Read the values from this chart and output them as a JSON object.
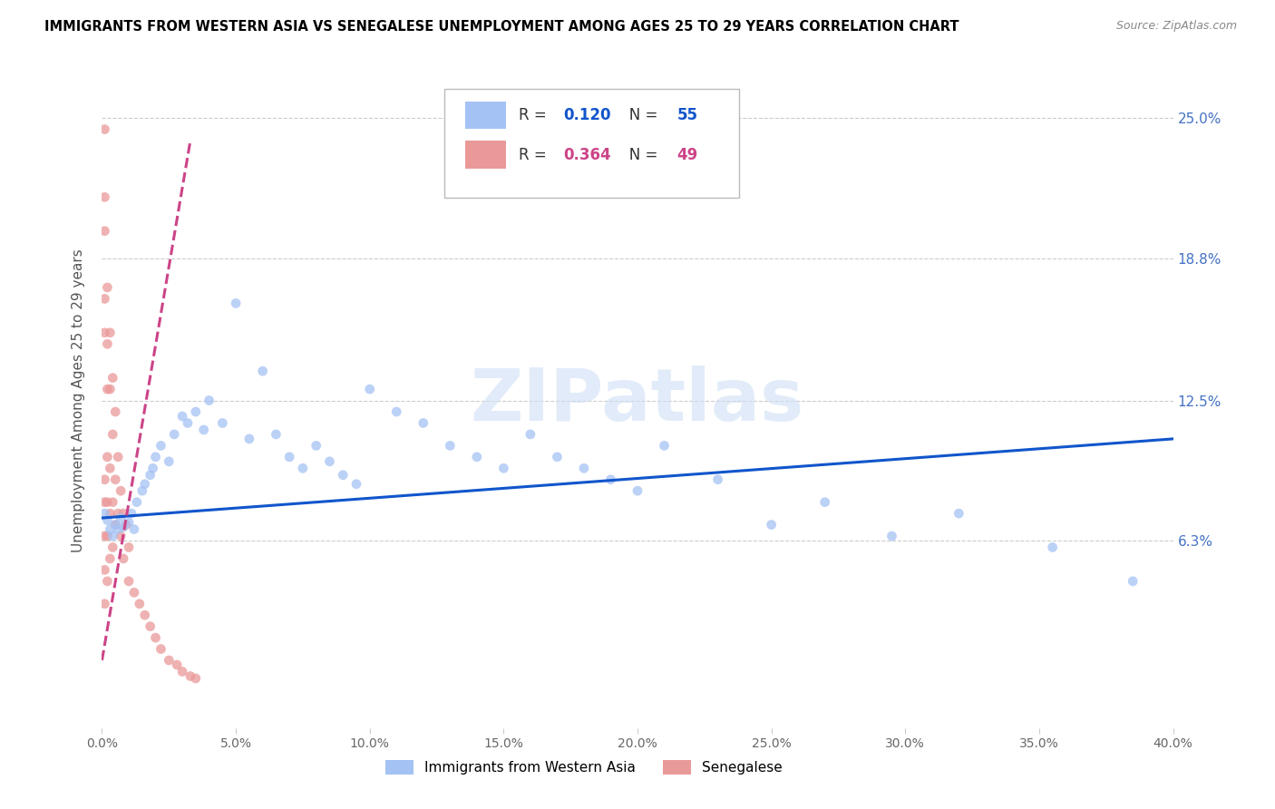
{
  "title": "IMMIGRANTS FROM WESTERN ASIA VS SENEGALESE UNEMPLOYMENT AMONG AGES 25 TO 29 YEARS CORRELATION CHART",
  "source": "Source: ZipAtlas.com",
  "ylabel": "Unemployment Among Ages 25 to 29 years",
  "ytick_labels": [
    "6.3%",
    "12.5%",
    "18.8%",
    "25.0%"
  ],
  "ytick_values": [
    0.063,
    0.125,
    0.188,
    0.25
  ],
  "xlim": [
    0.0,
    0.4
  ],
  "ylim": [
    -0.02,
    0.27
  ],
  "blue_R": "0.120",
  "blue_N": "55",
  "pink_R": "0.364",
  "pink_N": "49",
  "blue_color": "#a4c2f4",
  "pink_color": "#ea9999",
  "blue_line_color": "#1155cc",
  "pink_line_color": "#cc4488",
  "legend_label_blue": "Immigrants from Western Asia",
  "legend_label_pink": "Senegalese",
  "watermark": "ZIPatlas",
  "blue_scatter_x": [
    0.001,
    0.002,
    0.003,
    0.004,
    0.005,
    0.006,
    0.007,
    0.008,
    0.01,
    0.011,
    0.012,
    0.013,
    0.015,
    0.016,
    0.018,
    0.019,
    0.02,
    0.022,
    0.025,
    0.027,
    0.03,
    0.032,
    0.035,
    0.038,
    0.04,
    0.045,
    0.05,
    0.055,
    0.06,
    0.065,
    0.07,
    0.075,
    0.08,
    0.085,
    0.09,
    0.095,
    0.1,
    0.11,
    0.12,
    0.13,
    0.14,
    0.15,
    0.16,
    0.17,
    0.18,
    0.19,
    0.2,
    0.21,
    0.23,
    0.25,
    0.27,
    0.295,
    0.32,
    0.355,
    0.385
  ],
  "blue_scatter_y": [
    0.075,
    0.072,
    0.068,
    0.065,
    0.07,
    0.068,
    0.073,
    0.069,
    0.071,
    0.075,
    0.068,
    0.08,
    0.085,
    0.088,
    0.092,
    0.095,
    0.1,
    0.105,
    0.098,
    0.11,
    0.118,
    0.115,
    0.12,
    0.112,
    0.125,
    0.115,
    0.168,
    0.108,
    0.138,
    0.11,
    0.1,
    0.095,
    0.105,
    0.098,
    0.092,
    0.088,
    0.13,
    0.12,
    0.115,
    0.105,
    0.1,
    0.095,
    0.11,
    0.1,
    0.095,
    0.09,
    0.085,
    0.105,
    0.09,
    0.07,
    0.08,
    0.065,
    0.075,
    0.06,
    0.045
  ],
  "pink_scatter_x": [
    0.001,
    0.001,
    0.001,
    0.001,
    0.001,
    0.001,
    0.001,
    0.001,
    0.001,
    0.001,
    0.002,
    0.002,
    0.002,
    0.002,
    0.002,
    0.002,
    0.002,
    0.003,
    0.003,
    0.003,
    0.003,
    0.003,
    0.004,
    0.004,
    0.004,
    0.004,
    0.005,
    0.005,
    0.005,
    0.006,
    0.006,
    0.007,
    0.007,
    0.008,
    0.008,
    0.009,
    0.01,
    0.01,
    0.012,
    0.014,
    0.016,
    0.018,
    0.02,
    0.022,
    0.025,
    0.028,
    0.03,
    0.033,
    0.035
  ],
  "pink_scatter_y": [
    0.245,
    0.215,
    0.2,
    0.17,
    0.155,
    0.09,
    0.08,
    0.065,
    0.05,
    0.035,
    0.175,
    0.15,
    0.13,
    0.1,
    0.08,
    0.065,
    0.045,
    0.155,
    0.13,
    0.095,
    0.075,
    0.055,
    0.135,
    0.11,
    0.08,
    0.06,
    0.12,
    0.09,
    0.07,
    0.1,
    0.075,
    0.085,
    0.065,
    0.075,
    0.055,
    0.07,
    0.06,
    0.045,
    0.04,
    0.035,
    0.03,
    0.025,
    0.02,
    0.015,
    0.01,
    0.008,
    0.005,
    0.003,
    0.002
  ],
  "blue_trend_x": [
    0.0,
    0.4
  ],
  "blue_trend_y": [
    0.073,
    0.108
  ],
  "pink_trend_x": [
    0.0,
    0.033
  ],
  "pink_trend_y": [
    0.01,
    0.24
  ]
}
